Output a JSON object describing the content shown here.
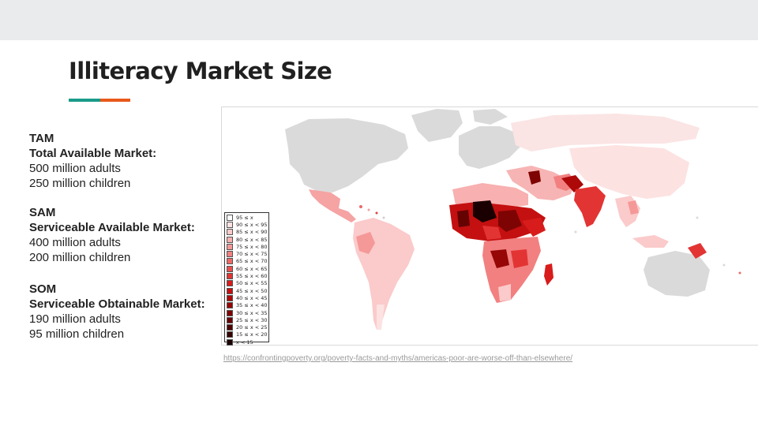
{
  "slide": {
    "title": "Illiteracy Market Size",
    "accent_colors": [
      "#1a9b8a",
      "#e8591a"
    ]
  },
  "markets": [
    {
      "abbr": "TAM",
      "name": "Total Available Market:",
      "lines": [
        "500 million adults",
        "250 million children"
      ]
    },
    {
      "abbr": "SAM",
      "name": "Serviceable Available Market:",
      "lines": [
        "400 million adults",
        "200 million children"
      ]
    },
    {
      "abbr": "SOM",
      "name": "Serviceable Obtainable Market:",
      "lines": [
        "190 million adults",
        "95 million children"
      ]
    }
  ],
  "map": {
    "no_data_color": "#dadada",
    "legend": [
      {
        "label": "95 ≤ x",
        "color": "#ffffff"
      },
      {
        "label": "90 ≤ x < 95",
        "color": "#fde2e2"
      },
      {
        "label": "85 ≤ x < 90",
        "color": "#fbcaca"
      },
      {
        "label": "80 ≤ x < 85",
        "color": "#f8b0b0"
      },
      {
        "label": "75 ≤ x < 80",
        "color": "#f59898"
      },
      {
        "label": "70 ≤ x < 75",
        "color": "#f28080"
      },
      {
        "label": "65 ≤ x < 70",
        "color": "#ee6868"
      },
      {
        "label": "60 ≤ x < 65",
        "color": "#ea4f4f"
      },
      {
        "label": "55 ≤ x < 60",
        "color": "#e33434"
      },
      {
        "label": "50 ≤ x < 55",
        "color": "#d81c1c"
      },
      {
        "label": "45 ≤ x < 50",
        "color": "#c41010"
      },
      {
        "label": "40 ≤ x < 45",
        "color": "#ad0909"
      },
      {
        "label": "35 ≤ x < 40",
        "color": "#960606"
      },
      {
        "label": "30 ≤ x < 35",
        "color": "#7e0404"
      },
      {
        "label": "25 ≤ x < 30",
        "color": "#650303"
      },
      {
        "label": "20 ≤ x < 25",
        "color": "#4d0202"
      },
      {
        "label": "15 ≤ x < 20",
        "color": "#360101"
      },
      {
        "label": "x < 15",
        "color": "#1a0000"
      }
    ]
  },
  "source": {
    "text": "https://confrontingpoverty.org/poverty-facts-and-myths/americas-poor-are-worse-off-than-elsewhere/"
  }
}
